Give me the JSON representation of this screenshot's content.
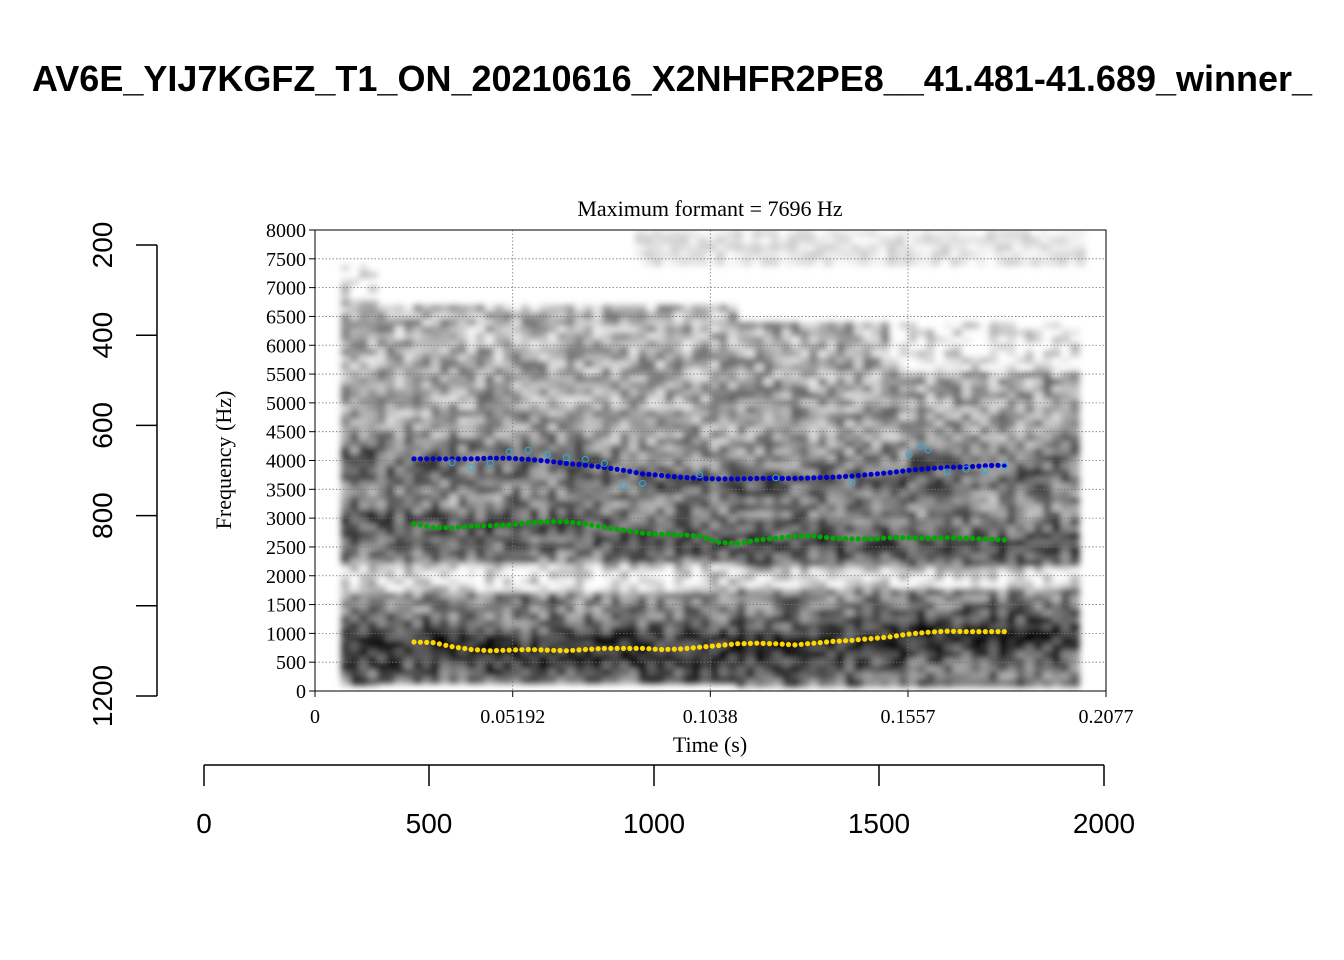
{
  "figure": {
    "title": "AV6E_YIJ7KGFZ_T1_ON_20210616_X2NHFR2PE8__41.481-41.689_winner_"
  },
  "chart_data": [
    {
      "type": "scatter",
      "subtype": "spectrogram-with-formant-tracks",
      "title": "Maximum formant = 7696 Hz",
      "xlabel": "Time (s)",
      "ylabel": "Frequency (Hz)",
      "xlim": [
        0,
        0.2077
      ],
      "ylim": [
        0,
        8000
      ],
      "x_ticks": [
        "0",
        "0.05192",
        "0.1038",
        "0.1557",
        "0.2077"
      ],
      "y_ticks": [
        "0",
        "500",
        "1000",
        "1500",
        "2000",
        "2500",
        "3000",
        "3500",
        "4000",
        "4500",
        "5000",
        "5500",
        "6000",
        "6500",
        "7000",
        "7500",
        "8000"
      ],
      "grid": true,
      "colors": {
        "F1": "#FFD700",
        "F2": "#00AA00",
        "F3": "#0000CC",
        "F3_raw": "#33AADD",
        "spectrogram": "#000000"
      },
      "series": [
        {
          "key": "F1",
          "color": "#FFD700",
          "x": [
            0.026,
            0.031,
            0.036,
            0.041,
            0.046,
            0.051,
            0.056,
            0.061,
            0.066,
            0.071,
            0.076,
            0.081,
            0.086,
            0.091,
            0.096,
            0.101,
            0.106,
            0.111,
            0.116,
            0.121,
            0.126,
            0.131,
            0.136,
            0.141,
            0.146,
            0.151,
            0.156,
            0.161,
            0.166,
            0.171,
            0.176,
            0.181
          ],
          "y": [
            850,
            840,
            770,
            720,
            700,
            710,
            720,
            710,
            700,
            720,
            740,
            740,
            740,
            720,
            730,
            760,
            790,
            820,
            830,
            820,
            800,
            830,
            860,
            880,
            910,
            940,
            990,
            1020,
            1040,
            1030,
            1030,
            1030
          ]
        },
        {
          "key": "F2",
          "color": "#00AA00",
          "x": [
            0.026,
            0.031,
            0.036,
            0.041,
            0.046,
            0.051,
            0.056,
            0.061,
            0.066,
            0.071,
            0.076,
            0.081,
            0.086,
            0.091,
            0.096,
            0.101,
            0.106,
            0.111,
            0.116,
            0.121,
            0.126,
            0.131,
            0.136,
            0.141,
            0.146,
            0.151,
            0.156,
            0.161,
            0.166,
            0.171,
            0.176,
            0.181
          ],
          "y": [
            2900,
            2840,
            2830,
            2860,
            2870,
            2880,
            2920,
            2940,
            2940,
            2900,
            2840,
            2790,
            2740,
            2720,
            2710,
            2690,
            2580,
            2560,
            2620,
            2650,
            2690,
            2690,
            2650,
            2640,
            2640,
            2660,
            2660,
            2650,
            2660,
            2650,
            2640,
            2620
          ]
        },
        {
          "key": "F3",
          "color": "#0000CC",
          "x": [
            0.026,
            0.031,
            0.036,
            0.041,
            0.046,
            0.051,
            0.056,
            0.061,
            0.066,
            0.071,
            0.076,
            0.081,
            0.086,
            0.091,
            0.096,
            0.101,
            0.106,
            0.111,
            0.116,
            0.121,
            0.126,
            0.131,
            0.136,
            0.141,
            0.146,
            0.151,
            0.156,
            0.161,
            0.166,
            0.171,
            0.176,
            0.181
          ],
          "y": [
            4030,
            4030,
            4030,
            4030,
            4040,
            4040,
            4020,
            3990,
            3950,
            3920,
            3880,
            3830,
            3770,
            3740,
            3710,
            3690,
            3680,
            3680,
            3690,
            3690,
            3690,
            3700,
            3710,
            3730,
            3760,
            3790,
            3830,
            3860,
            3880,
            3890,
            3910,
            3920
          ]
        },
        {
          "key": "F3_raw",
          "color": "#33AADD",
          "x": [
            0.036,
            0.041,
            0.046,
            0.051,
            0.056,
            0.061,
            0.066,
            0.071,
            0.076,
            0.081,
            0.086,
            0.101,
            0.121,
            0.141,
            0.156,
            0.159,
            0.161,
            0.166,
            0.171,
            0.176,
            0.181
          ],
          "y": [
            3960,
            3880,
            3950,
            4150,
            4180,
            4100,
            4050,
            4020,
            3950,
            3560,
            3600,
            3750,
            3700,
            3620,
            4100,
            4250,
            4180,
            3800,
            3850,
            3820,
            3900
          ]
        }
      ]
    },
    {
      "type": "line",
      "subtype": "outer-axes",
      "x_ticks": [
        "0",
        "500",
        "1000",
        "1500",
        "2000"
      ],
      "xlim": [
        0,
        2000
      ],
      "y_ticks": [
        "200",
        "400",
        "600",
        "800",
        "1000",
        "1200"
      ],
      "y_tick_labels_shown": [
        "200",
        "400",
        "600",
        "800",
        "1200"
      ],
      "ylim": [
        200,
        1200
      ],
      "y_reversed": true
    }
  ]
}
